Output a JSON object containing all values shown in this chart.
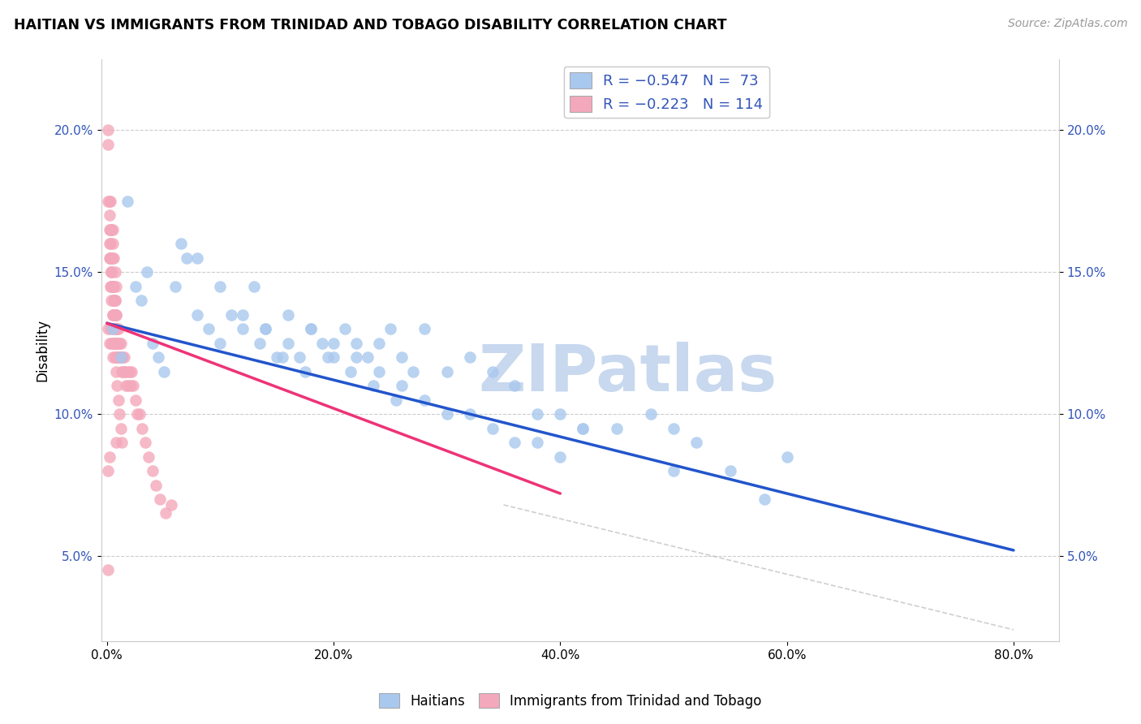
{
  "title": "HAITIAN VS IMMIGRANTS FROM TRINIDAD AND TOBAGO DISABILITY CORRELATION CHART",
  "source": "Source: ZipAtlas.com",
  "xlabel_ticks": [
    "0.0%",
    "20.0%",
    "40.0%",
    "60.0%",
    "80.0%"
  ],
  "xlabel_vals": [
    0.0,
    0.2,
    0.4,
    0.6,
    0.8
  ],
  "ylabel_ticks": [
    "5.0%",
    "10.0%",
    "15.0%",
    "20.0%"
  ],
  "ylabel_vals": [
    0.05,
    0.1,
    0.15,
    0.2
  ],
  "ylim": [
    0.02,
    0.225
  ],
  "xlim": [
    -0.005,
    0.84
  ],
  "blue_R": -0.547,
  "blue_N": 73,
  "pink_R": -0.223,
  "pink_N": 114,
  "blue_color": "#A8C8EE",
  "pink_color": "#F4A8BB",
  "blue_line_color": "#2255CC",
  "pink_line_color": "#EE3377",
  "grid_color": "#CCCCCC",
  "watermark": "ZIPatlas",
  "watermark_color": "#C8D8EE",
  "legend_label_blue": "Haitians",
  "legend_label_pink": "Immigrants from Trinidad and Tobago",
  "ylabel": "Disability",
  "legend_text_color": "#3355BB",
  "blue_line_x0": 0.0,
  "blue_line_x1": 0.8,
  "blue_line_y0": 0.132,
  "blue_line_y1": 0.052,
  "pink_line_x0": 0.0,
  "pink_line_x1": 0.4,
  "pink_line_y0": 0.132,
  "pink_line_y1": 0.072,
  "dash_line_x0": 0.35,
  "dash_line_x1": 0.8,
  "dash_line_y0": 0.068,
  "dash_line_y1": 0.024,
  "blue_x": [
    0.005,
    0.012,
    0.018,
    0.025,
    0.03,
    0.035,
    0.04,
    0.045,
    0.05,
    0.06,
    0.065,
    0.07,
    0.08,
    0.09,
    0.1,
    0.11,
    0.12,
    0.13,
    0.14,
    0.15,
    0.16,
    0.17,
    0.18,
    0.19,
    0.2,
    0.21,
    0.22,
    0.23,
    0.24,
    0.25,
    0.26,
    0.27,
    0.28,
    0.3,
    0.32,
    0.34,
    0.36,
    0.38,
    0.4,
    0.42,
    0.08,
    0.1,
    0.12,
    0.14,
    0.16,
    0.18,
    0.2,
    0.22,
    0.24,
    0.26,
    0.28,
    0.3,
    0.32,
    0.34,
    0.36,
    0.38,
    0.4,
    0.42,
    0.45,
    0.48,
    0.5,
    0.52,
    0.55,
    0.58,
    0.6,
    0.135,
    0.155,
    0.175,
    0.195,
    0.215,
    0.235,
    0.255,
    0.5
  ],
  "blue_y": [
    0.13,
    0.12,
    0.175,
    0.145,
    0.14,
    0.15,
    0.125,
    0.12,
    0.115,
    0.145,
    0.16,
    0.155,
    0.135,
    0.13,
    0.125,
    0.135,
    0.13,
    0.145,
    0.13,
    0.12,
    0.135,
    0.12,
    0.13,
    0.125,
    0.12,
    0.13,
    0.125,
    0.12,
    0.125,
    0.13,
    0.12,
    0.115,
    0.13,
    0.115,
    0.12,
    0.115,
    0.11,
    0.1,
    0.1,
    0.095,
    0.155,
    0.145,
    0.135,
    0.13,
    0.125,
    0.13,
    0.125,
    0.12,
    0.115,
    0.11,
    0.105,
    0.1,
    0.1,
    0.095,
    0.09,
    0.09,
    0.085,
    0.095,
    0.095,
    0.1,
    0.095,
    0.09,
    0.08,
    0.07,
    0.085,
    0.125,
    0.12,
    0.115,
    0.12,
    0.115,
    0.11,
    0.105,
    0.08
  ],
  "pink_x": [
    0.001,
    0.001,
    0.001,
    0.002,
    0.002,
    0.002,
    0.003,
    0.003,
    0.003,
    0.003,
    0.004,
    0.004,
    0.004,
    0.005,
    0.005,
    0.005,
    0.005,
    0.006,
    0.006,
    0.006,
    0.006,
    0.007,
    0.007,
    0.007,
    0.007,
    0.007,
    0.008,
    0.008,
    0.008,
    0.008,
    0.009,
    0.009,
    0.009,
    0.01,
    0.01,
    0.01,
    0.011,
    0.011,
    0.012,
    0.012,
    0.013,
    0.013,
    0.014,
    0.014,
    0.015,
    0.015,
    0.016,
    0.017,
    0.018,
    0.019,
    0.02,
    0.021,
    0.022,
    0.023,
    0.025,
    0.027,
    0.029,
    0.031,
    0.034,
    0.037,
    0.04,
    0.043,
    0.047,
    0.052,
    0.057,
    0.001,
    0.002,
    0.003,
    0.004,
    0.005,
    0.006,
    0.007,
    0.008,
    0.009,
    0.01,
    0.011,
    0.012,
    0.013,
    0.003,
    0.004,
    0.005,
    0.006,
    0.007,
    0.008,
    0.009,
    0.01,
    0.002,
    0.003,
    0.004,
    0.005,
    0.006,
    0.007,
    0.008,
    0.009,
    0.004,
    0.005,
    0.006,
    0.007,
    0.008,
    0.002,
    0.003,
    0.003,
    0.003,
    0.004,
    0.004,
    0.004,
    0.005,
    0.005,
    0.006,
    0.007,
    0.008,
    0.002,
    0.001,
    0.001
  ],
  "pink_y": [
    0.2,
    0.195,
    0.175,
    0.175,
    0.165,
    0.155,
    0.175,
    0.165,
    0.155,
    0.145,
    0.155,
    0.165,
    0.145,
    0.155,
    0.145,
    0.135,
    0.165,
    0.145,
    0.135,
    0.14,
    0.125,
    0.14,
    0.135,
    0.13,
    0.125,
    0.14,
    0.135,
    0.13,
    0.125,
    0.135,
    0.13,
    0.125,
    0.12,
    0.13,
    0.125,
    0.12,
    0.125,
    0.12,
    0.125,
    0.12,
    0.115,
    0.12,
    0.115,
    0.12,
    0.115,
    0.12,
    0.115,
    0.11,
    0.115,
    0.11,
    0.115,
    0.11,
    0.115,
    0.11,
    0.105,
    0.1,
    0.1,
    0.095,
    0.09,
    0.085,
    0.08,
    0.075,
    0.07,
    0.065,
    0.068,
    0.13,
    0.125,
    0.13,
    0.125,
    0.12,
    0.125,
    0.12,
    0.115,
    0.11,
    0.105,
    0.1,
    0.095,
    0.09,
    0.155,
    0.15,
    0.145,
    0.14,
    0.135,
    0.13,
    0.125,
    0.12,
    0.16,
    0.155,
    0.15,
    0.145,
    0.14,
    0.135,
    0.13,
    0.125,
    0.165,
    0.16,
    0.155,
    0.15,
    0.145,
    0.17,
    0.165,
    0.16,
    0.155,
    0.15,
    0.145,
    0.14,
    0.135,
    0.13,
    0.125,
    0.12,
    0.09,
    0.085,
    0.08,
    0.045
  ]
}
